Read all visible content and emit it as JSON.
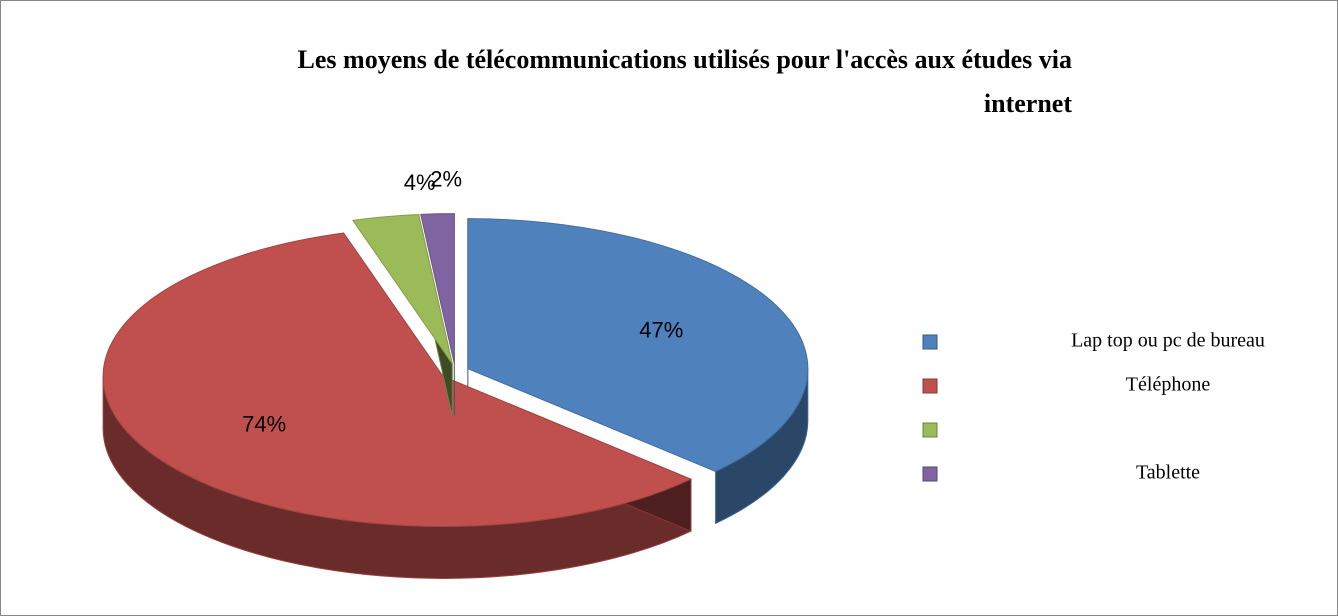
{
  "chart_data": {
    "type": "pie",
    "title": "Les moyens de télécommunications utilisés pour l'accès aux études via internet",
    "categories": [
      "Lap top ou pc de bureau",
      "Téléphone",
      null,
      "Tablette"
    ],
    "values": [
      47,
      74,
      4,
      2
    ],
    "value_labels": [
      "47%",
      "74%",
      "4%",
      "2%"
    ],
    "colors": [
      "#4f81bd",
      "#c0504d",
      "#9bbb59",
      "#8064a2"
    ],
    "legend": "right"
  }
}
